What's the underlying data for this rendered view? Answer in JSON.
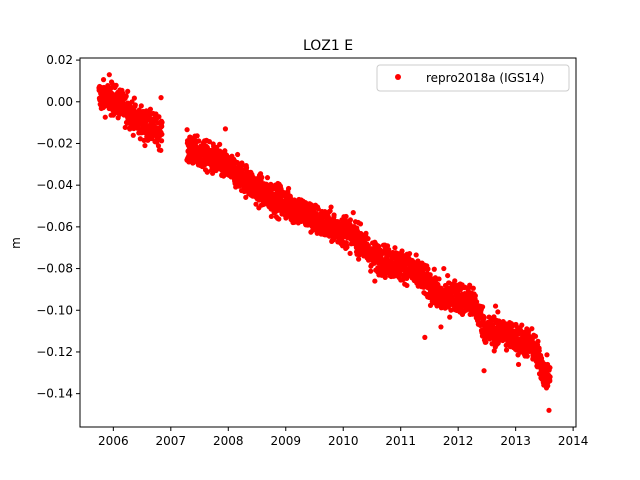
{
  "chart_data": {
    "type": "scatter",
    "title": "LOZ1 E",
    "xlabel": "",
    "ylabel": "m",
    "xlim": [
      2005.42,
      2014.05
    ],
    "ylim": [
      -0.156,
      0.021
    ],
    "grid": false,
    "legend_position": "top-right",
    "x_ticks": [
      2006,
      2007,
      2008,
      2009,
      2010,
      2011,
      2012,
      2013,
      2014
    ],
    "x_tick_labels": [
      "2006",
      "2007",
      "2008",
      "2009",
      "2010",
      "2011",
      "2012",
      "2013",
      "2014"
    ],
    "y_ticks": [
      0.02,
      0.0,
      -0.02,
      -0.04,
      -0.06,
      -0.08,
      -0.1,
      -0.12,
      -0.14
    ],
    "y_tick_labels": [
      "0.02",
      "0.00",
      "−0.02",
      "−0.04",
      "−0.06",
      "−0.08",
      "−0.10",
      "−0.12",
      "−0.14"
    ],
    "series": [
      {
        "name": "repro2018a (IGS14)",
        "color": "#ff0000",
        "marker": "circle",
        "trend": [
          [
            2005.75,
            0.003
          ],
          [
            2006.0,
            0.001
          ],
          [
            2006.2,
            -0.003
          ],
          [
            2006.4,
            -0.008
          ],
          [
            2006.6,
            -0.012
          ],
          [
            2006.8,
            -0.014
          ],
          [
            2007.3,
            -0.023
          ],
          [
            2007.6,
            -0.026
          ],
          [
            2007.9,
            -0.03
          ],
          [
            2008.2,
            -0.035
          ],
          [
            2008.5,
            -0.042
          ],
          [
            2008.8,
            -0.046
          ],
          [
            2009.0,
            -0.049
          ],
          [
            2009.3,
            -0.053
          ],
          [
            2009.6,
            -0.058
          ],
          [
            2009.9,
            -0.061
          ],
          [
            2010.2,
            -0.064
          ],
          [
            2010.5,
            -0.074
          ],
          [
            2010.8,
            -0.077
          ],
          [
            2011.1,
            -0.079
          ],
          [
            2011.4,
            -0.085
          ],
          [
            2011.7,
            -0.094
          ],
          [
            2012.0,
            -0.093
          ],
          [
            2012.3,
            -0.098
          ],
          [
            2012.5,
            -0.11
          ],
          [
            2012.8,
            -0.111
          ],
          [
            2013.0,
            -0.113
          ],
          [
            2013.3,
            -0.117
          ],
          [
            2013.5,
            -0.13
          ],
          [
            2013.6,
            -0.132
          ]
        ],
        "gaps": [
          [
            2006.85,
            2007.28
          ]
        ],
        "scatter_amplitude": 0.004,
        "outliers": [
          [
            2005.93,
            0.013
          ],
          [
            2006.25,
            0.005
          ],
          [
            2006.83,
            0.002
          ],
          [
            2006.55,
            -0.021
          ],
          [
            2007.33,
            -0.017
          ],
          [
            2007.95,
            -0.013
          ],
          [
            2008.75,
            -0.055
          ],
          [
            2009.35,
            -0.059
          ],
          [
            2010.05,
            -0.055
          ],
          [
            2010.25,
            -0.071
          ],
          [
            2010.55,
            -0.086
          ],
          [
            2010.9,
            -0.07
          ],
          [
            2011.28,
            -0.087
          ],
          [
            2011.42,
            -0.113
          ],
          [
            2011.7,
            -0.108
          ],
          [
            2011.75,
            -0.08
          ],
          [
            2012.2,
            -0.088
          ],
          [
            2012.45,
            -0.129
          ],
          [
            2012.65,
            -0.098
          ],
          [
            2013.05,
            -0.126
          ],
          [
            2013.45,
            -0.123
          ],
          [
            2013.58,
            -0.148
          ]
        ]
      }
    ]
  }
}
